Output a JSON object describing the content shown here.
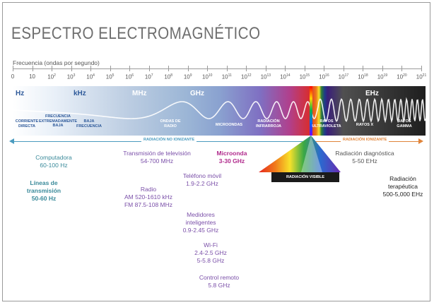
{
  "title": "ESPECTRO ELECTROMAGNÉTICO",
  "frequency_axis": {
    "label": "Frecuencia (ondas por segundo)",
    "ticks": [
      {
        "base": "0",
        "exp": ""
      },
      {
        "base": "10",
        "exp": ""
      },
      {
        "base": "10",
        "exp": "2"
      },
      {
        "base": "10",
        "exp": "3"
      },
      {
        "base": "10",
        "exp": "4"
      },
      {
        "base": "10",
        "exp": "5"
      },
      {
        "base": "10",
        "exp": "6"
      },
      {
        "base": "10",
        "exp": "7"
      },
      {
        "base": "10",
        "exp": "8"
      },
      {
        "base": "10",
        "exp": "9"
      },
      {
        "base": "10",
        "exp": "10"
      },
      {
        "base": "10",
        "exp": "11"
      },
      {
        "base": "10",
        "exp": "12"
      },
      {
        "base": "10",
        "exp": "13"
      },
      {
        "base": "10",
        "exp": "14"
      },
      {
        "base": "10",
        "exp": "15"
      },
      {
        "base": "10",
        "exp": "16"
      },
      {
        "base": "10",
        "exp": "17"
      },
      {
        "base": "10",
        "exp": "18"
      },
      {
        "base": "10",
        "exp": "19"
      },
      {
        "base": "10",
        "exp": "20"
      },
      {
        "base": "10",
        "exp": "21"
      }
    ]
  },
  "units": {
    "hz": "Hz",
    "khz": "kHz",
    "mhz": "MHz",
    "ghz": "GHz",
    "ehz": "EHz"
  },
  "bands": {
    "corriente_directa": [
      "CORRIENTE",
      "DIRECTA"
    ],
    "frecuencia_extremadamente_baja": [
      "FRECUENCIA",
      "EXTREMADAMENTE",
      "BAJA"
    ],
    "baja_frecuencia": [
      "BAJA",
      "FRECUENCIA"
    ],
    "ondas_de_radio": [
      "ONDAS DE",
      "RADIO"
    ],
    "microondas": [
      "MICROONDAS"
    ],
    "radiacion_infrarroja": [
      "RADIACIÓN",
      "INFRARROJA"
    ],
    "rayos_ultravioleta": [
      "RAYOS",
      "ULTRAVIOLETA"
    ],
    "rayos_x": [
      "RAYOS X"
    ],
    "rayos_gamma": [
      "RAYOS",
      "GAMMA"
    ]
  },
  "radiation": {
    "no_ionizante": "RADIACIÓN NO IONIZANTE",
    "ionizante": "RADIACIÓN IONIZANTE",
    "visible": "RADIACIÓN VISIBLE"
  },
  "colors": {
    "teal": "#3a8a9a",
    "purple": "#7a4fa8",
    "pink": "#b02a8c",
    "non_ionizing_arrow": "#4a9bbf",
    "ionizing_arrow": "#e0843a"
  },
  "sources": {
    "computadora": [
      "Computadora",
      "60-100 Hz"
    ],
    "lineas": [
      "Líneas de",
      "transmisión",
      "50-60 Hz"
    ],
    "television": [
      "Transmisión de televisión",
      "54-700 MHz"
    ],
    "radio": [
      "Radio",
      "AM 520-1610 kHz",
      "FM 87.5-108 MHz"
    ],
    "microonda": [
      "Microonda",
      "3-30 GHz"
    ],
    "telefono": [
      "Teléfono móvil",
      "1.9-2.2 GHz"
    ],
    "medidores": [
      "Medidores",
      "inteligentes",
      "0.9-2.45 GHz"
    ],
    "wifi": [
      "Wi-Fi",
      "2.4-2.5 GHz",
      "5-5.8 GHz"
    ],
    "control": [
      "Control remoto",
      "5.8 GHz"
    ],
    "diagnostica": [
      "Radiación diagnóstica",
      "5-50 EHz"
    ],
    "terapeutica": [
      "Radiación",
      "terapéutica",
      "500-5,000 EHz"
    ]
  }
}
